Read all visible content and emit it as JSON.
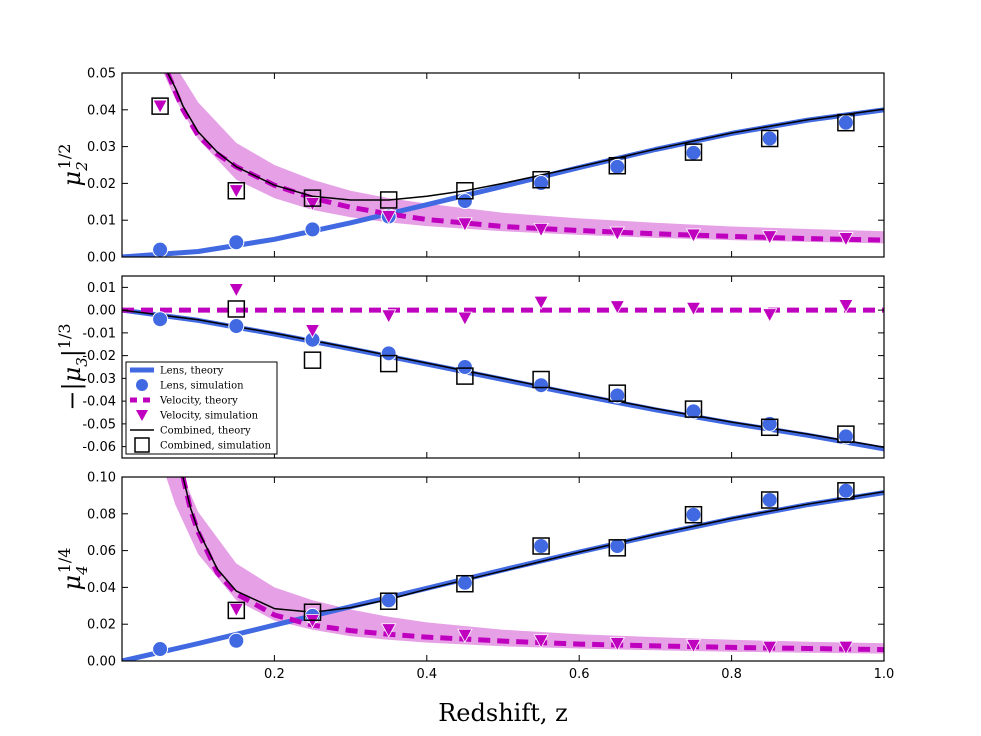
{
  "chart_data": [
    {
      "type": "line",
      "panel": "top",
      "ylabel": {
        "base": "μ",
        "sub": "2",
        "sup": "1/2"
      },
      "xlim": [
        0.0,
        1.0
      ],
      "ylim": [
        0.0,
        0.05
      ],
      "yticks": [
        "0.00",
        "0.01",
        "0.02",
        "0.03",
        "0.04",
        "0.05"
      ],
      "xticks": [],
      "band": {
        "name": "Velocity, theory range",
        "x": [
          0.03,
          0.05,
          0.07,
          0.1,
          0.15,
          0.2,
          0.25,
          0.3,
          0.35,
          0.4,
          0.5,
          0.6,
          0.7,
          0.8,
          0.9,
          1.0
        ],
        "upper": [
          0.07,
          0.06,
          0.052,
          0.042,
          0.031,
          0.025,
          0.021,
          0.018,
          0.016,
          0.0145,
          0.012,
          0.0105,
          0.0093,
          0.0083,
          0.0076,
          0.007
        ],
        "lower": [
          0.07,
          0.052,
          0.043,
          0.032,
          0.021,
          0.016,
          0.0128,
          0.0108,
          0.0094,
          0.0084,
          0.007,
          0.006,
          0.0052,
          0.0046,
          0.0041,
          0.0037
        ]
      },
      "series": [
        {
          "name": "Lens, theory",
          "kind": "line",
          "x": [
            0.0,
            0.1,
            0.2,
            0.3,
            0.4,
            0.5,
            0.6,
            0.7,
            0.8,
            0.9,
            1.0
          ],
          "values": [
            0.0,
            0.0015,
            0.0048,
            0.0093,
            0.0142,
            0.0192,
            0.0243,
            0.0292,
            0.0336,
            0.0372,
            0.04
          ]
        },
        {
          "name": "Velocity, theory",
          "kind": "dashed",
          "x": [
            0.06,
            0.07,
            0.08,
            0.1,
            0.125,
            0.15,
            0.2,
            0.25,
            0.3,
            0.35,
            0.4,
            0.5,
            0.6,
            0.7,
            0.8,
            0.9,
            1.0
          ],
          "values": [
            0.05,
            0.045,
            0.04,
            0.033,
            0.028,
            0.0245,
            0.0195,
            0.016,
            0.0135,
            0.0117,
            0.0102,
            0.0083,
            0.0072,
            0.0063,
            0.0056,
            0.005,
            0.0046
          ]
        },
        {
          "name": "Combined, theory",
          "kind": "thin",
          "x": [
            0.06,
            0.07,
            0.08,
            0.1,
            0.125,
            0.15,
            0.2,
            0.25,
            0.3,
            0.35,
            0.4,
            0.45,
            0.5,
            0.6,
            0.7,
            0.8,
            0.9,
            1.0
          ],
          "values": [
            0.05,
            0.046,
            0.041,
            0.034,
            0.0285,
            0.0245,
            0.0195,
            0.0165,
            0.0155,
            0.0155,
            0.0165,
            0.018,
            0.02,
            0.0245,
            0.0293,
            0.0337,
            0.0373,
            0.0402
          ]
        },
        {
          "name": "Lens, simulation",
          "kind": "circle",
          "x": [
            0.05,
            0.15,
            0.25,
            0.35,
            0.45,
            0.55,
            0.65,
            0.75,
            0.85,
            0.95
          ],
          "values": [
            0.002,
            0.004,
            0.0075,
            0.011,
            0.0152,
            0.0201,
            0.0245,
            0.0283,
            0.0322,
            0.0365
          ]
        },
        {
          "name": "Velocity, simulation",
          "kind": "triangle",
          "x": [
            0.05,
            0.15,
            0.25,
            0.35,
            0.45,
            0.55,
            0.65,
            0.75,
            0.85,
            0.95
          ],
          "values": [
            0.041,
            0.018,
            0.0145,
            0.011,
            0.009,
            0.0075,
            0.0065,
            0.006,
            0.0055,
            0.005
          ]
        },
        {
          "name": "Combined, simulation",
          "kind": "square",
          "x": [
            0.05,
            0.15,
            0.25,
            0.35,
            0.45,
            0.55,
            0.65,
            0.75,
            0.85,
            0.95
          ],
          "values": [
            0.041,
            0.018,
            0.016,
            0.0155,
            0.018,
            0.021,
            0.0248,
            0.0285,
            0.0322,
            0.0365
          ]
        }
      ]
    },
    {
      "type": "line",
      "panel": "middle",
      "ylabel": {
        "prefix": "−|",
        "base": "μ",
        "sub": "3",
        "suffix": "|",
        "sup": "1/3"
      },
      "xlim": [
        0.0,
        1.0
      ],
      "ylim": [
        -0.065,
        0.015
      ],
      "yticks": [
        "0.01",
        "0.00",
        "-0.01",
        "-0.02",
        "-0.03",
        "-0.04",
        "-0.05",
        "-0.06"
      ],
      "ytick_values": [
        0.01,
        0.0,
        -0.01,
        -0.02,
        -0.03,
        -0.04,
        -0.05,
        -0.06
      ],
      "xticks": [],
      "series": [
        {
          "name": "Lens, theory",
          "kind": "line",
          "x": [
            0.0,
            0.1,
            0.2,
            0.3,
            0.4,
            0.5,
            0.6,
            0.7,
            0.8,
            0.9,
            1.0
          ],
          "values": [
            0.0,
            -0.0045,
            -0.0105,
            -0.017,
            -0.0237,
            -0.0305,
            -0.0373,
            -0.0438,
            -0.0497,
            -0.055,
            -0.061
          ]
        },
        {
          "name": "Velocity, theory",
          "kind": "dashed",
          "x": [
            0.0,
            1.0
          ],
          "values": [
            0.0,
            0.0
          ]
        },
        {
          "name": "Combined, theory",
          "kind": "thin",
          "x": [
            0.0,
            0.1,
            0.2,
            0.3,
            0.4,
            0.5,
            0.6,
            0.7,
            0.8,
            0.9,
            1.0
          ],
          "values": [
            0.0,
            -0.0042,
            -0.0102,
            -0.0166,
            -0.0233,
            -0.03,
            -0.0368,
            -0.0433,
            -0.0492,
            -0.0545,
            -0.0603
          ]
        },
        {
          "name": "Lens, simulation",
          "kind": "circle",
          "x": [
            0.05,
            0.15,
            0.25,
            0.35,
            0.45,
            0.55,
            0.65,
            0.75,
            0.85,
            0.95
          ],
          "values": [
            -0.004,
            -0.007,
            -0.013,
            -0.019,
            -0.025,
            -0.033,
            -0.0375,
            -0.0445,
            -0.05,
            -0.0555
          ]
        },
        {
          "name": "Velocity, simulation",
          "kind": "triangle",
          "x": [
            0.15,
            0.25,
            0.35,
            0.45,
            0.55,
            0.65,
            0.75,
            0.85,
            0.95
          ],
          "values": [
            0.009,
            -0.009,
            -0.0025,
            -0.0035,
            0.0035,
            0.0015,
            0.0008,
            -0.002,
            0.002
          ]
        },
        {
          "name": "Combined, simulation",
          "kind": "square",
          "x": [
            0.15,
            0.25,
            0.35,
            0.45,
            0.55,
            0.65,
            0.75,
            0.85,
            0.95
          ],
          "values": [
            0.0005,
            -0.022,
            -0.0235,
            -0.029,
            -0.0305,
            -0.0365,
            -0.0435,
            -0.0515,
            -0.0545
          ]
        }
      ],
      "legend": {
        "placement": "lower-left",
        "entries": [
          {
            "label": "Lens, theory",
            "kind": "line"
          },
          {
            "label": "Lens, simulation",
            "kind": "circle"
          },
          {
            "label": "Velocity, theory",
            "kind": "dashed"
          },
          {
            "label": "Velocity, simulation",
            "kind": "triangle"
          },
          {
            "label": "Combined, theory",
            "kind": "thin"
          },
          {
            "label": "Combined, simulation",
            "kind": "square"
          }
        ]
      }
    },
    {
      "type": "line",
      "panel": "bottom",
      "ylabel": {
        "base": "μ",
        "sub": "4",
        "sup": "1/4"
      },
      "xlim": [
        0.0,
        1.0
      ],
      "ylim": [
        0.0,
        0.1
      ],
      "yticks": [
        "0.00",
        "0.02",
        "0.04",
        "0.06",
        "0.08",
        "0.10"
      ],
      "xticks": [
        "0.2",
        "0.4",
        "0.6",
        "0.8",
        "1.0"
      ],
      "xtick_values": [
        0.2,
        0.4,
        0.6,
        0.8,
        1.0
      ],
      "xlabel": "Redshift,  z",
      "band": {
        "name": "Velocity, theory range",
        "x": [
          0.05,
          0.07,
          0.1,
          0.15,
          0.2,
          0.25,
          0.3,
          0.35,
          0.4,
          0.5,
          0.6,
          0.7,
          0.8,
          0.9,
          1.0
        ],
        "upper": [
          0.13,
          0.11,
          0.081,
          0.053,
          0.04,
          0.033,
          0.028,
          0.024,
          0.021,
          0.017,
          0.0145,
          0.013,
          0.0115,
          0.0105,
          0.0097
        ],
        "lower": [
          0.11,
          0.085,
          0.058,
          0.033,
          0.022,
          0.017,
          0.0135,
          0.0115,
          0.01,
          0.008,
          0.0068,
          0.0058,
          0.005,
          0.0045,
          0.004
        ]
      },
      "series": [
        {
          "name": "Lens, theory",
          "kind": "line",
          "x": [
            0.0,
            0.1,
            0.2,
            0.3,
            0.4,
            0.5,
            0.6,
            0.7,
            0.8,
            0.9,
            1.0
          ],
          "values": [
            0.0,
            0.0095,
            0.0195,
            0.0295,
            0.0395,
            0.0495,
            0.0592,
            0.0685,
            0.0772,
            0.085,
            0.0915
          ]
        },
        {
          "name": "Velocity, theory",
          "kind": "dashed",
          "x": [
            0.08,
            0.09,
            0.1,
            0.125,
            0.15,
            0.2,
            0.25,
            0.3,
            0.35,
            0.4,
            0.5,
            0.6,
            0.7,
            0.8,
            0.9,
            1.0
          ],
          "values": [
            0.1,
            0.082,
            0.07,
            0.048,
            0.0365,
            0.025,
            0.0195,
            0.0165,
            0.0145,
            0.013,
            0.0108,
            0.0092,
            0.0082,
            0.0074,
            0.0068,
            0.0062
          ]
        },
        {
          "name": "Combined, theory",
          "kind": "thin",
          "x": [
            0.08,
            0.09,
            0.1,
            0.125,
            0.15,
            0.2,
            0.25,
            0.3,
            0.35,
            0.4,
            0.5,
            0.6,
            0.7,
            0.8,
            0.9,
            1.0
          ],
          "values": [
            0.1,
            0.083,
            0.071,
            0.05,
            0.038,
            0.0285,
            0.0265,
            0.029,
            0.0335,
            0.039,
            0.049,
            0.0592,
            0.0688,
            0.0775,
            0.0852,
            0.092
          ]
        },
        {
          "name": "Lens, simulation",
          "kind": "circle",
          "x": [
            0.05,
            0.15,
            0.25,
            0.35,
            0.45,
            0.55,
            0.65,
            0.75,
            0.85,
            0.95
          ],
          "values": [
            0.0065,
            0.011,
            0.0245,
            0.033,
            0.0425,
            0.0625,
            0.0625,
            0.0795,
            0.0875,
            0.0925
          ]
        },
        {
          "name": "Velocity, simulation",
          "kind": "triangle",
          "x": [
            0.15,
            0.25,
            0.35,
            0.45,
            0.55,
            0.65,
            0.75,
            0.85,
            0.95
          ],
          "values": [
            0.028,
            0.022,
            0.017,
            0.014,
            0.011,
            0.0095,
            0.0085,
            0.0075,
            0.0075
          ]
        },
        {
          "name": "Combined, simulation",
          "kind": "square",
          "x": [
            0.15,
            0.25,
            0.35,
            0.45,
            0.55,
            0.65,
            0.75,
            0.85,
            0.95
          ],
          "values": [
            0.0275,
            0.0265,
            0.0325,
            0.042,
            0.0625,
            0.0615,
            0.0795,
            0.0875,
            0.0925
          ]
        }
      ]
    }
  ],
  "colors": {
    "lens": "#4169E1",
    "velocity": "#BF00BF",
    "band": "#E6A0E6",
    "combined": "#000000"
  }
}
